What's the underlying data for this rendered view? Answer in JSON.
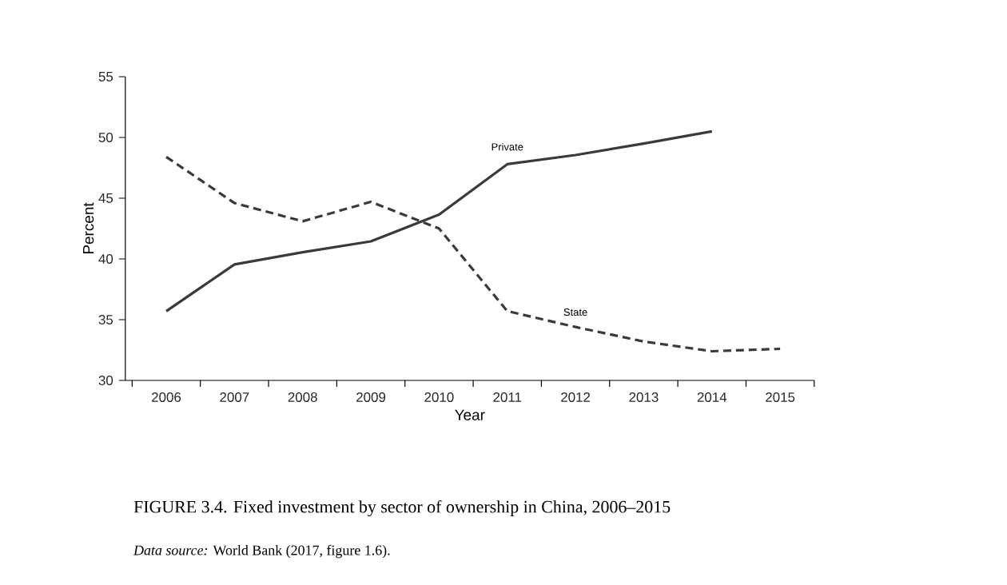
{
  "chart_data": {
    "type": "line",
    "title": "FIGURE 3.4. Fixed investment by sector of ownership in China, 2006–2015",
    "xlabel": "Year",
    "ylabel": "Percent",
    "categories": [
      "2006",
      "2007",
      "2008",
      "2009",
      "2010",
      "2011",
      "2012",
      "2013",
      "2014",
      "2015"
    ],
    "series": [
      {
        "name": "Private",
        "color": "#3a3a3a",
        "line_style": "solid",
        "values": [
          35.7,
          39.55,
          40.55,
          41.45,
          43.65,
          47.8,
          48.55,
          49.5,
          50.5,
          null
        ]
      },
      {
        "name": "State",
        "color": "#3a3a3a",
        "line_style": "dashed",
        "values": [
          48.4,
          44.6,
          43.1,
          44.7,
          42.5,
          35.7,
          34.4,
          33.2,
          32.4,
          32.6
        ]
      }
    ],
    "ylim": [
      30,
      55
    ],
    "yticks": [
      30,
      35,
      40,
      45,
      50,
      55
    ],
    "annotations": [
      "*Data source:* World Bank (2017, figure 1.6)."
    ]
  }
}
